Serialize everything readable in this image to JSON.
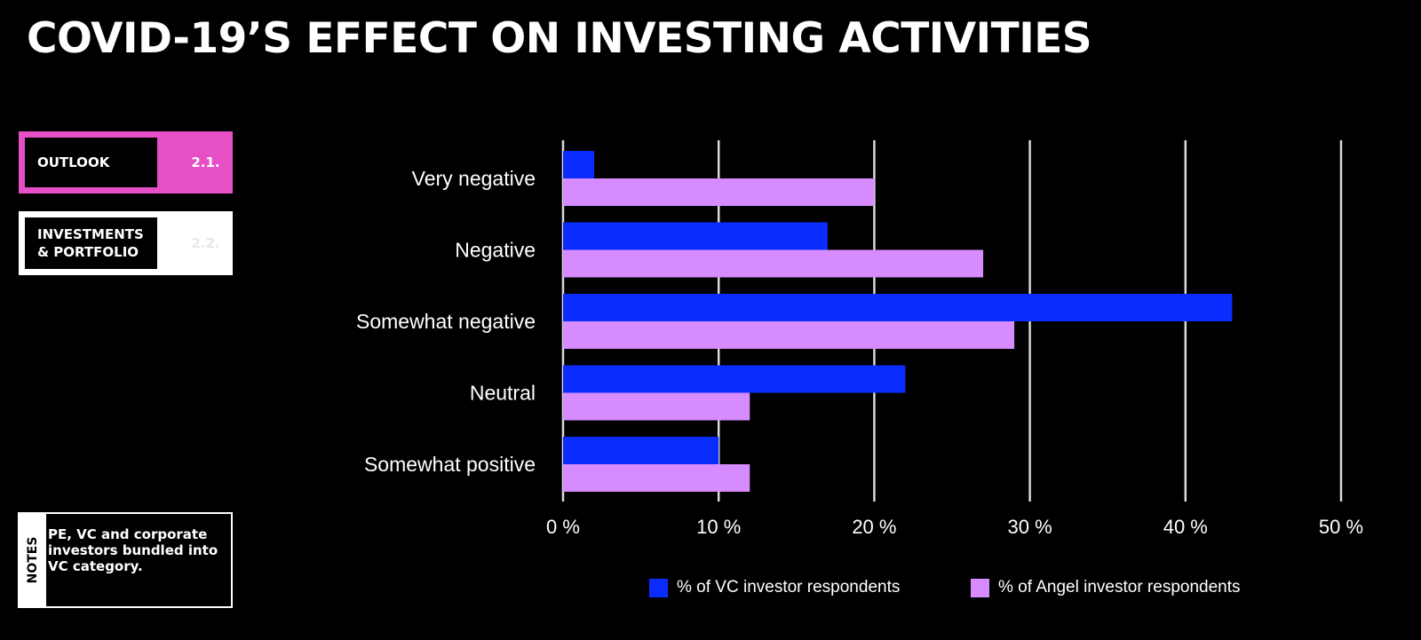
{
  "title": "COVID-19’S EFFECT ON INVESTING ACTIVITIES",
  "nav": {
    "outlook": {
      "label": "OUTLOOK",
      "number": "2.1."
    },
    "investments": {
      "label_line1": "INVESTMENTS",
      "label_line2": "& PORTFOLIO",
      "number": "2.2."
    }
  },
  "notes": {
    "tag": "NOTES",
    "text": "PE, VC and corporate investors bundled into VC category."
  },
  "colors": {
    "vc": "#0a2cff",
    "angel": "#d68bff",
    "nav_accent": "#e64fc6",
    "background": "#000000"
  },
  "chart_data": {
    "type": "bar",
    "orientation": "horizontal",
    "categories": [
      "Very negative",
      "Negative",
      "Somewhat negative",
      "Neutral",
      "Somewhat positive"
    ],
    "series": [
      {
        "name": "% of VC investor respondents",
        "values": [
          2,
          17,
          43,
          22,
          10
        ],
        "color": "#0a2cff"
      },
      {
        "name": "% of Angel investor respondents",
        "values": [
          20,
          27,
          29,
          12,
          12
        ],
        "color": "#d68bff"
      }
    ],
    "xlim": [
      0,
      50
    ],
    "ticks": [
      0,
      10,
      20,
      30,
      40,
      50
    ],
    "tick_labels": [
      "0 %",
      "10 %",
      "20 %",
      "30 %",
      "40 %",
      "50 %"
    ],
    "grid": true,
    "legend_position": "bottom"
  }
}
